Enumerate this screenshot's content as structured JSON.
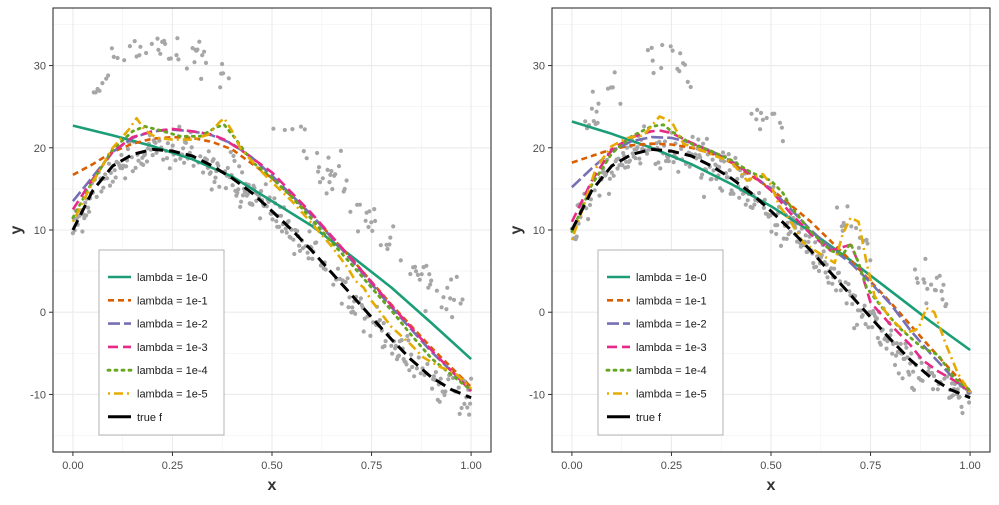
{
  "chart_data": [
    {
      "type": "line",
      "title": "",
      "xlabel": "x",
      "ylabel": "y",
      "xlim": [
        -0.05,
        1.05
      ],
      "ylim": [
        -17,
        37
      ],
      "x_ticks": [
        0.0,
        0.25,
        0.5,
        0.75,
        1.0
      ],
      "x_tick_labels": [
        "0.00",
        "0.25",
        "0.50",
        "0.75",
        "1.00"
      ],
      "y_ticks": [
        -10,
        0,
        10,
        20,
        30
      ],
      "y_tick_labels": [
        "-10",
        "0",
        "10",
        "20",
        "30"
      ],
      "grid": true,
      "legend_position": "bottom-left",
      "legend": [
        {
          "label": "lambda = 1e-0",
          "color": "#1b9e77",
          "dash": "solid"
        },
        {
          "label": "lambda = 1e-1",
          "color": "#d95f02",
          "dash": "dashed"
        },
        {
          "label": "lambda = 1e-2",
          "color": "#7570b3",
          "dash": "longdash"
        },
        {
          "label": "lambda = 1e-3",
          "color": "#e7298a",
          "dash": "longdash2"
        },
        {
          "label": "lambda = 1e-4",
          "color": "#66a61e",
          "dash": "dotted"
        },
        {
          "label": "lambda = 1e-5",
          "color": "#e6ab02",
          "dash": "dotdash"
        },
        {
          "label": "true f",
          "color": "#000000",
          "dash": "truef"
        }
      ],
      "series": [
        {
          "name": "lambda = 1e-0",
          "x": [
            0.0,
            0.1,
            0.2,
            0.3,
            0.4,
            0.5,
            0.6,
            0.7,
            0.8,
            0.9,
            1.0
          ],
          "y": [
            22.7,
            21.5,
            20.2,
            18.6,
            16.5,
            13.5,
            10.5,
            6.8,
            3.0,
            -1.3,
            -5.7
          ]
        },
        {
          "name": "lambda = 1e-1",
          "x": [
            0.0,
            0.05,
            0.1,
            0.15,
            0.2,
            0.25,
            0.3,
            0.35,
            0.4,
            0.5,
            0.6,
            0.7,
            0.8,
            0.9,
            1.0
          ],
          "y": [
            16.7,
            18.0,
            19.5,
            20.5,
            21.1,
            21.3,
            21.2,
            20.7,
            19.8,
            16.3,
            11.8,
            6.5,
            0.9,
            -4.3,
            -9.1
          ]
        },
        {
          "name": "lambda = 1e-2",
          "x": [
            0.0,
            0.05,
            0.1,
            0.15,
            0.2,
            0.25,
            0.3,
            0.35,
            0.4,
            0.45,
            0.5,
            0.6,
            0.7,
            0.8,
            0.9,
            1.0
          ],
          "y": [
            13.5,
            16.5,
            19.5,
            21.2,
            22.0,
            22.2,
            22.0,
            21.5,
            20.5,
            18.8,
            16.6,
            11.8,
            6.3,
            0.6,
            -4.8,
            -9.5
          ]
        },
        {
          "name": "lambda = 1e-3",
          "x": [
            0.0,
            0.05,
            0.1,
            0.15,
            0.2,
            0.25,
            0.3,
            0.35,
            0.38,
            0.42,
            0.5,
            0.6,
            0.7,
            0.8,
            0.9,
            1.0
          ],
          "y": [
            12.5,
            16.2,
            19.5,
            21.3,
            22.0,
            22.3,
            22.0,
            21.6,
            21.0,
            19.8,
            17.0,
            12.0,
            6.5,
            0.8,
            -4.6,
            -9.6
          ]
        },
        {
          "name": "lambda = 1e-4",
          "x": [
            0.0,
            0.05,
            0.1,
            0.15,
            0.18,
            0.22,
            0.27,
            0.32,
            0.36,
            0.38,
            0.41,
            0.45,
            0.5,
            0.55,
            0.6,
            0.65,
            0.7,
            0.75,
            0.8,
            0.85,
            0.9,
            0.95,
            1.0
          ],
          "y": [
            11.5,
            16.0,
            19.8,
            22.0,
            22.6,
            22.1,
            21.4,
            21.4,
            22.5,
            22.8,
            21.0,
            18.3,
            16.3,
            14.0,
            11.3,
            8.5,
            5.8,
            3.0,
            0.2,
            -2.8,
            -5.6,
            -7.6,
            -9.5
          ]
        },
        {
          "name": "lambda = 1e-5",
          "x": [
            0.0,
            0.05,
            0.1,
            0.14,
            0.16,
            0.18,
            0.21,
            0.25,
            0.3,
            0.34,
            0.37,
            0.38,
            0.4,
            0.42,
            0.46,
            0.5,
            0.55,
            0.6,
            0.65,
            0.69,
            0.71,
            0.73,
            0.75,
            0.8,
            0.85,
            0.88,
            0.92,
            0.96,
            1.0
          ],
          "y": [
            11.0,
            15.8,
            20.0,
            22.2,
            23.6,
            22.2,
            21.2,
            21.0,
            21.0,
            21.6,
            23.2,
            23.6,
            22.0,
            20.0,
            17.8,
            15.8,
            13.5,
            10.8,
            8.0,
            5.4,
            3.8,
            3.0,
            1.4,
            -1.8,
            -4.0,
            -5.5,
            -6.6,
            -7.4,
            -9.3
          ]
        },
        {
          "name": "true f",
          "x": [
            0.0,
            0.05,
            0.1,
            0.15,
            0.2,
            0.25,
            0.3,
            0.35,
            0.4,
            0.45,
            0.5,
            0.55,
            0.6,
            0.65,
            0.7,
            0.75,
            0.8,
            0.85,
            0.9,
            0.95,
            1.0
          ],
          "y": [
            10.0,
            14.8,
            17.8,
            19.2,
            19.8,
            19.6,
            19.0,
            17.8,
            16.3,
            14.5,
            12.3,
            10.0,
            7.5,
            4.8,
            2.1,
            -0.6,
            -3.3,
            -5.8,
            -7.9,
            -9.4,
            -10.4
          ]
        }
      ],
      "outlier_blocks": [
        {
          "x_range": [
            0.05,
            0.4
          ],
          "y_offset": 12
        },
        {
          "x_range": [
            0.5,
            0.98
          ],
          "y_offset": 11.5
        }
      ]
    },
    {
      "type": "line",
      "title": "",
      "xlabel": "x",
      "ylabel": "y",
      "xlim": [
        -0.05,
        1.05
      ],
      "ylim": [
        -17,
        37
      ],
      "x_ticks": [
        0.0,
        0.25,
        0.5,
        0.75,
        1.0
      ],
      "x_tick_labels": [
        "0.00",
        "0.25",
        "0.50",
        "0.75",
        "1.00"
      ],
      "y_ticks": [
        -10,
        0,
        10,
        20,
        30
      ],
      "y_tick_labels": [
        "-10",
        "0",
        "10",
        "20",
        "30"
      ],
      "grid": true,
      "legend_position": "bottom-left",
      "legend": [
        {
          "label": "lambda = 1e-0",
          "color": "#1b9e77",
          "dash": "solid"
        },
        {
          "label": "lambda = 1e-1",
          "color": "#d95f02",
          "dash": "dashed"
        },
        {
          "label": "lambda = 1e-2",
          "color": "#7570b3",
          "dash": "longdash"
        },
        {
          "label": "lambda = 1e-3",
          "color": "#e7298a",
          "dash": "longdash2"
        },
        {
          "label": "lambda = 1e-4",
          "color": "#66a61e",
          "dash": "dotted"
        },
        {
          "label": "lambda = 1e-5",
          "color": "#e6ab02",
          "dash": "dotdash"
        },
        {
          "label": "true f",
          "color": "#000000",
          "dash": "truef"
        }
      ],
      "series": [
        {
          "name": "lambda = 1e-0",
          "x": [
            0.0,
            0.1,
            0.2,
            0.3,
            0.4,
            0.5,
            0.6,
            0.7,
            0.8,
            0.9,
            1.0
          ],
          "y": [
            23.2,
            21.7,
            20.0,
            18.0,
            15.6,
            12.9,
            9.8,
            6.3,
            2.6,
            -1.1,
            -4.6
          ]
        },
        {
          "name": "lambda = 1e-1",
          "x": [
            0.0,
            0.05,
            0.1,
            0.15,
            0.2,
            0.25,
            0.3,
            0.35,
            0.4,
            0.5,
            0.6,
            0.7,
            0.8,
            0.9,
            1.0
          ],
          "y": [
            18.2,
            19.0,
            19.8,
            20.3,
            20.5,
            20.4,
            20.0,
            19.3,
            18.2,
            15.0,
            11.0,
            6.3,
            1.2,
            -4.3,
            -9.6
          ]
        },
        {
          "name": "lambda = 1e-2",
          "x": [
            0.0,
            0.05,
            0.1,
            0.15,
            0.2,
            0.25,
            0.3,
            0.35,
            0.4,
            0.45,
            0.5,
            0.55,
            0.6,
            0.65,
            0.7,
            0.75,
            0.8,
            0.85,
            0.9,
            0.95,
            1.0
          ],
          "y": [
            15.2,
            17.5,
            19.6,
            20.8,
            21.3,
            21.2,
            20.6,
            19.6,
            18.4,
            16.8,
            15.0,
            12.5,
            10.0,
            7.8,
            6.0,
            3.6,
            1.0,
            -2.2,
            -5.0,
            -7.6,
            -10.0
          ]
        },
        {
          "name": "lambda = 1e-3",
          "x": [
            0.0,
            0.05,
            0.1,
            0.15,
            0.2,
            0.22,
            0.25,
            0.3,
            0.35,
            0.4,
            0.45,
            0.5,
            0.55,
            0.6,
            0.65,
            0.7,
            0.72,
            0.75,
            0.8,
            0.85,
            0.88,
            0.92,
            0.96,
            1.0
          ],
          "y": [
            11.0,
            16.0,
            19.8,
            21.3,
            22.0,
            22.1,
            21.8,
            20.6,
            19.5,
            18.3,
            16.8,
            14.8,
            12.0,
            9.5,
            7.5,
            8.2,
            6.0,
            1.2,
            -1.5,
            -4.0,
            -5.8,
            -7.2,
            -8.3,
            -9.6
          ]
        },
        {
          "name": "lambda = 1e-4",
          "x": [
            0.0,
            0.05,
            0.1,
            0.15,
            0.2,
            0.23,
            0.25,
            0.3,
            0.35,
            0.4,
            0.45,
            0.5,
            0.53,
            0.55,
            0.6,
            0.65,
            0.68,
            0.7,
            0.72,
            0.74,
            0.78,
            0.82,
            0.86,
            0.88,
            0.92,
            0.96,
            1.0
          ],
          "y": [
            9.8,
            15.5,
            19.3,
            21.4,
            22.6,
            22.8,
            22.0,
            20.5,
            19.6,
            18.5,
            17.0,
            16.0,
            14.5,
            12.8,
            9.8,
            7.5,
            7.0,
            8.4,
            6.0,
            3.0,
            0.5,
            -1.8,
            -3.5,
            -4.3,
            -5.2,
            -8.0,
            -9.5
          ]
        },
        {
          "name": "lambda = 1e-5",
          "x": [
            0.0,
            0.03,
            0.06,
            0.1,
            0.14,
            0.18,
            0.22,
            0.25,
            0.28,
            0.32,
            0.36,
            0.4,
            0.44,
            0.46,
            0.48,
            0.5,
            0.52,
            0.55,
            0.58,
            0.62,
            0.66,
            0.68,
            0.7,
            0.72,
            0.74,
            0.76,
            0.8,
            0.84,
            0.87,
            0.89,
            0.91,
            0.94,
            0.97,
            1.0
          ],
          "y": [
            8.8,
            13.0,
            17.5,
            20.2,
            21.2,
            21.5,
            23.8,
            23.2,
            20.5,
            19.8,
            19.0,
            18.3,
            16.0,
            16.5,
            16.8,
            15.5,
            13.0,
            11.0,
            8.5,
            7.2,
            6.0,
            9.5,
            11.5,
            11.0,
            6.0,
            2.0,
            -0.8,
            -2.5,
            -2.0,
            0.5,
            0.0,
            -4.0,
            -7.5,
            -9.8
          ]
        },
        {
          "name": "true f",
          "x": [
            0.0,
            0.05,
            0.1,
            0.15,
            0.2,
            0.25,
            0.3,
            0.35,
            0.4,
            0.45,
            0.5,
            0.55,
            0.6,
            0.65,
            0.7,
            0.75,
            0.8,
            0.85,
            0.9,
            0.95,
            1.0
          ],
          "y": [
            10.0,
            14.8,
            17.8,
            19.2,
            19.8,
            19.6,
            19.0,
            17.8,
            16.3,
            14.5,
            12.3,
            10.0,
            7.5,
            4.8,
            2.1,
            -0.6,
            -3.3,
            -5.8,
            -7.9,
            -9.4,
            -10.4
          ]
        }
      ],
      "outlier_blocks": [
        {
          "x_range": [
            0.03,
            0.13
          ],
          "y_offset": 9
        },
        {
          "x_range": [
            0.19,
            0.3
          ],
          "y_offset": 11
        },
        {
          "x_range": [
            0.45,
            0.53
          ],
          "y_offset": 10
        },
        {
          "x_range": [
            0.65,
            0.75
          ],
          "y_offset": 8.5
        },
        {
          "x_range": [
            0.86,
            0.95
          ],
          "y_offset": 11
        }
      ]
    }
  ]
}
